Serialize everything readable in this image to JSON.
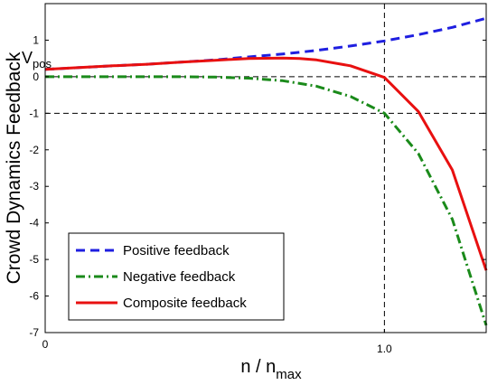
{
  "chart_data": {
    "type": "line",
    "ylabel": "Crowd Dynamics Feedback",
    "ylabel_sub": "V",
    "ylabel_subscript": "pos",
    "xlabel": "n / n",
    "xlabel_subscript": "max",
    "xlim": [
      0,
      1.3
    ],
    "ylim": [
      -7,
      2
    ],
    "xticks": [
      {
        "value": 0,
        "label": "0"
      },
      {
        "value": 1.0,
        "label": "1.0"
      }
    ],
    "yticks": [
      {
        "value": 1,
        "label": "1"
      },
      {
        "value": 0,
        "label": "0"
      },
      {
        "value": -1,
        "label": "-1"
      },
      {
        "value": -2,
        "label": "-2"
      },
      {
        "value": -3,
        "label": "-3"
      },
      {
        "value": -4,
        "label": "-4"
      },
      {
        "value": -5,
        "label": "-5"
      },
      {
        "value": -6,
        "label": "-6"
      },
      {
        "value": -7,
        "label": "-7"
      }
    ],
    "reference_lines": {
      "horizontal": [
        0,
        -1
      ],
      "vertical": [
        1.0
      ],
      "style": "dashed",
      "color": "#000000"
    },
    "legend_position": "bottom-left",
    "series": [
      {
        "name": "Positive feedback",
        "color": "#1f1fe0",
        "style": "dashed",
        "x": [
          0,
          0.1,
          0.2,
          0.3,
          0.4,
          0.5,
          0.6,
          0.7,
          0.8,
          0.9,
          1.0,
          1.1,
          1.2,
          1.3
        ],
        "y": [
          0.2,
          0.25,
          0.3,
          0.34,
          0.4,
          0.46,
          0.54,
          0.62,
          0.72,
          0.84,
          0.98,
          1.15,
          1.35,
          1.6
        ]
      },
      {
        "name": "Negative feedback",
        "color": "#1a8a1a",
        "style": "dashdot",
        "x": [
          0,
          0.1,
          0.2,
          0.3,
          0.4,
          0.5,
          0.6,
          0.7,
          0.8,
          0.9,
          1.0,
          1.1,
          1.2,
          1.3
        ],
        "y": [
          0.0,
          0.0,
          0.0,
          0.0,
          0.0,
          -0.01,
          -0.04,
          -0.11,
          -0.26,
          -0.54,
          -1.0,
          -2.1,
          -3.9,
          -6.8
        ]
      },
      {
        "name": "Composite feedback",
        "color": "#e81010",
        "style": "solid",
        "x": [
          0,
          0.1,
          0.2,
          0.3,
          0.4,
          0.5,
          0.6,
          0.7,
          0.75,
          0.8,
          0.9,
          1.0,
          1.1,
          1.2,
          1.3
        ],
        "y": [
          0.2,
          0.25,
          0.3,
          0.34,
          0.4,
          0.45,
          0.5,
          0.51,
          0.5,
          0.46,
          0.3,
          -0.02,
          -0.95,
          -2.55,
          -5.3
        ]
      }
    ]
  }
}
